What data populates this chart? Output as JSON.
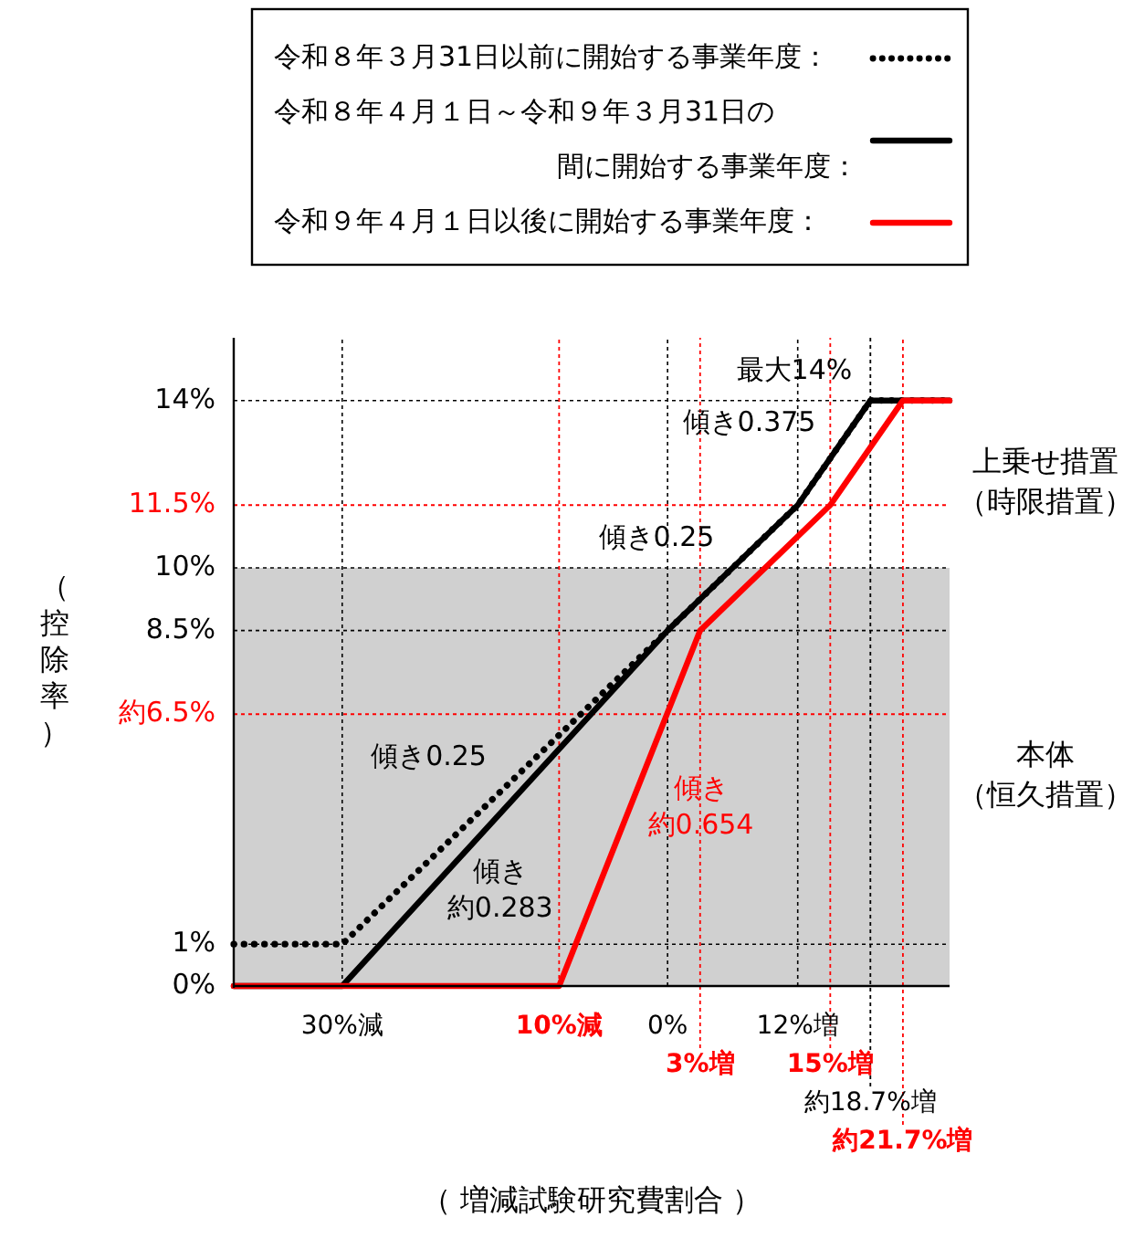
{
  "chart_data": {
    "type": "line",
    "xlabel": "（ 増減試験研究費割合 ）",
    "ylabel": "（控除率）",
    "xlim": [
      -40,
      26
    ],
    "ylim": [
      0,
      15.5
    ],
    "xticks": [
      {
        "value": -30,
        "label": "30%減"
      },
      {
        "value": 0,
        "label": "0%"
      },
      {
        "value": 12,
        "label": "12%増"
      }
    ],
    "yticks": [
      {
        "value": 0,
        "label": "0%"
      },
      {
        "value": 1,
        "label": "1%"
      },
      {
        "value": 8.5,
        "label": "8.5%"
      },
      {
        "value": 10,
        "label": "10%"
      },
      {
        "value": 14,
        "label": "14%"
      }
    ],
    "grid": true,
    "legend": "top",
    "series": [
      {
        "name": "令和８年３月31日以前に開始する事業年度：",
        "color": "#000000",
        "line_style": "dotted",
        "x": [
          -40,
          -30,
          0,
          12,
          18.7,
          26
        ],
        "values": [
          1,
          1,
          8.5,
          11.5,
          14,
          14
        ]
      },
      {
        "name": "令和８年４月１日～令和９年３月31日の間に開始する事業年度：",
        "color": "#000000",
        "line_style": "solid",
        "x": [
          -40,
          -30,
          0,
          12,
          18.7,
          26
        ],
        "values": [
          0,
          0,
          8.5,
          11.5,
          14,
          14
        ]
      },
      {
        "name": "令和９年４月１日以後に開始する事業年度：",
        "color": "#ff0000",
        "line_style": "solid",
        "x": [
          -40,
          -10,
          3,
          15,
          21.7,
          26
        ],
        "values": [
          0,
          0,
          8.5,
          11.5,
          14,
          14
        ]
      }
    ],
    "ref_lines": [
      {
        "axis": "y",
        "value": 11.5,
        "label": "11.5%",
        "color": "#ff0000",
        "line_style": "dotted"
      },
      {
        "axis": "y",
        "value": 6.5,
        "label": "約6.5%",
        "color": "#ff0000",
        "line_style": "dotted"
      },
      {
        "axis": "x",
        "value": -10,
        "label": "10%減",
        "color": "#ff0000",
        "line_style": "dotted"
      },
      {
        "axis": "x",
        "value": 3,
        "label": "3%増",
        "color": "#ff0000",
        "line_style": "dotted"
      },
      {
        "axis": "x",
        "value": 15,
        "label": "15%増",
        "color": "#ff0000",
        "line_style": "dotted"
      },
      {
        "axis": "x",
        "value": 18.7,
        "label": "約18.7%増",
        "color": "#000000",
        "line_style": "dotted"
      },
      {
        "axis": "x",
        "value": 21.7,
        "label": "約21.7%増",
        "color": "#ff0000",
        "line_style": "dotted"
      }
    ],
    "bands": [
      {
        "axis": "y",
        "from": 0,
        "to": 10,
        "label": "本体（恒久措置）",
        "color": "#d0d0d0"
      }
    ],
    "annotations": [
      {
        "text": "最大14%",
        "x": 18.7,
        "y": 14
      },
      {
        "text": "傾き0.375",
        "x": 15.35,
        "y": 12.76
      },
      {
        "text": "傾き0.25",
        "x": 6,
        "y": 10
      },
      {
        "text": "傾き0.25",
        "x": -15,
        "y": 4.75
      },
      {
        "text": "傾き約0.283",
        "x": -22,
        "y": 2.27
      },
      {
        "text": "傾き約0.654",
        "x": -3.5,
        "y": 4.25
      },
      "上乗せ措置（時限措置）"
    ]
  }
}
